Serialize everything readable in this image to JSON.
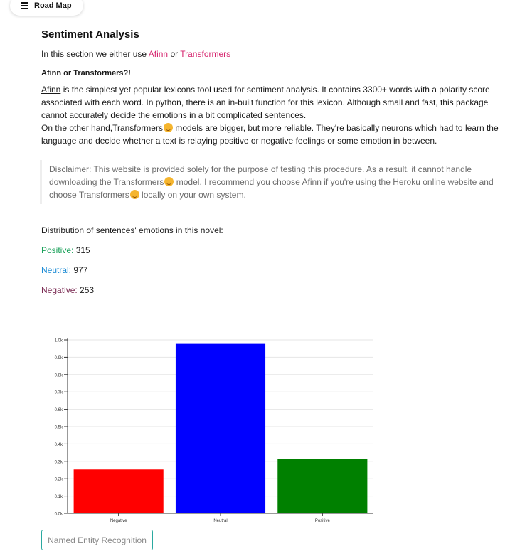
{
  "nav": {
    "roadmap_label": "Road Map"
  },
  "section": {
    "title": "Sentiment Analysis",
    "intro_prefix": "In this section we either use",
    "intro_link1": "Afinn",
    "intro_or": "or",
    "intro_link2": "Transformers",
    "subtitle": "Afinn or Transformers?!",
    "para1_link": "Afinn",
    "para1_text": " is the simplest yet popular lexicons tool used for sentiment analysis. It contains 3300+ words with a polarity score associated with each word. In python, there is an in-built function for this lexicon. Although small and fast, this package cannot accurately decide the emotions in a bit complicated sentences.",
    "para2_prefix": "On the other hand,",
    "para2_link": "Transformers",
    "para2_text": " models are bigger, but more reliable. They're basically neurons which had to learn the language and decide whether a text is relaying positive or negative feelings or some emotion in between.",
    "disclaimer_part1": "Disclaimer: This website is provided solely for the purpose of testing this procedure. As a result, it cannot handle downloading the Transformers",
    "disclaimer_part2": " model. I recommend you choose Afinn if you're using the Heroku online website and choose Transformers",
    "disclaimer_part3": " locally on your own system."
  },
  "distribution": {
    "intro": "Distribution of sentences' emotions in this novel:",
    "positive_label": "Positive:",
    "positive_value": "315",
    "neutral_label": "Neutral:",
    "neutral_value": "977",
    "negative_label": "Negative:",
    "negative_value": "253"
  },
  "colors": {
    "positive_text": "#1aa15a",
    "neutral_text": "#1a8ad4",
    "negative_text": "#7a2a52",
    "link": "#d6246e",
    "button_border": "#2aa9a0"
  },
  "chart_data": {
    "type": "bar",
    "categories": [
      "Negative",
      "Neutral",
      "Positive"
    ],
    "values": [
      253,
      977,
      315
    ],
    "colors": [
      "#ff0000",
      "#0000ff",
      "#008000"
    ],
    "ylim": [
      0,
      1000
    ],
    "yticks": [
      0,
      100,
      200,
      300,
      400,
      500,
      600,
      700,
      800,
      900,
      1000
    ],
    "ytick_labels": [
      "0.0k",
      "0.1k",
      "0.2k",
      "0.3k",
      "0.4k",
      "0.5k",
      "0.6k",
      "0.7k",
      "0.8k",
      "0.9k",
      "1.0k"
    ],
    "grid": true,
    "title": "",
    "xlabel": "",
    "ylabel": ""
  },
  "footer": {
    "ner_button_label": "Named Entity Recognition"
  }
}
